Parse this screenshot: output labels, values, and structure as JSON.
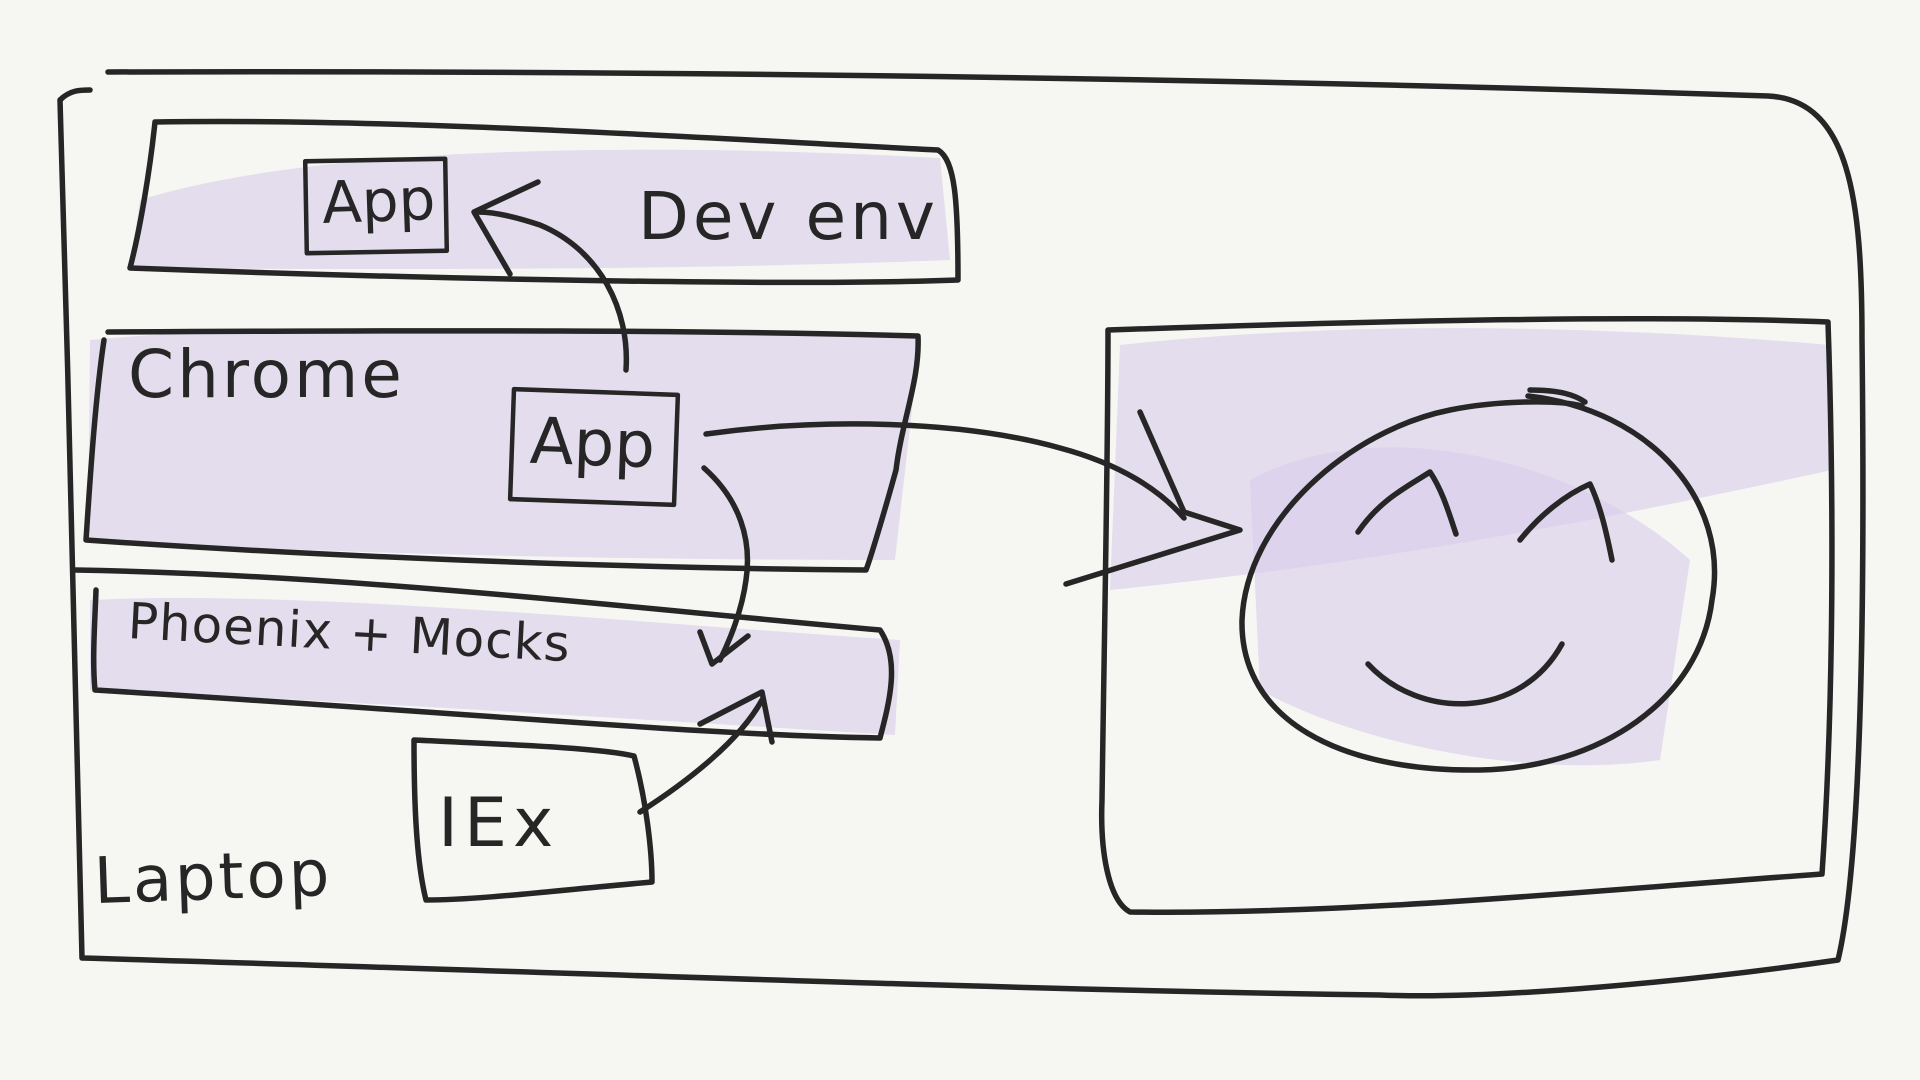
{
  "diagram": {
    "labels": {
      "app_dev": "App",
      "dev_env": "Dev env",
      "chrome": "Chrome",
      "app_chrome": "App",
      "phoenix_mocks": "Phoenix + Mocks",
      "iex": "IEx",
      "laptop": "Laptop"
    }
  },
  "colors": {
    "background": "#f6f7f3",
    "ink": "#262626",
    "highlight": "#d9cdea"
  },
  "icons": {
    "face": "smiley-face-icon"
  }
}
